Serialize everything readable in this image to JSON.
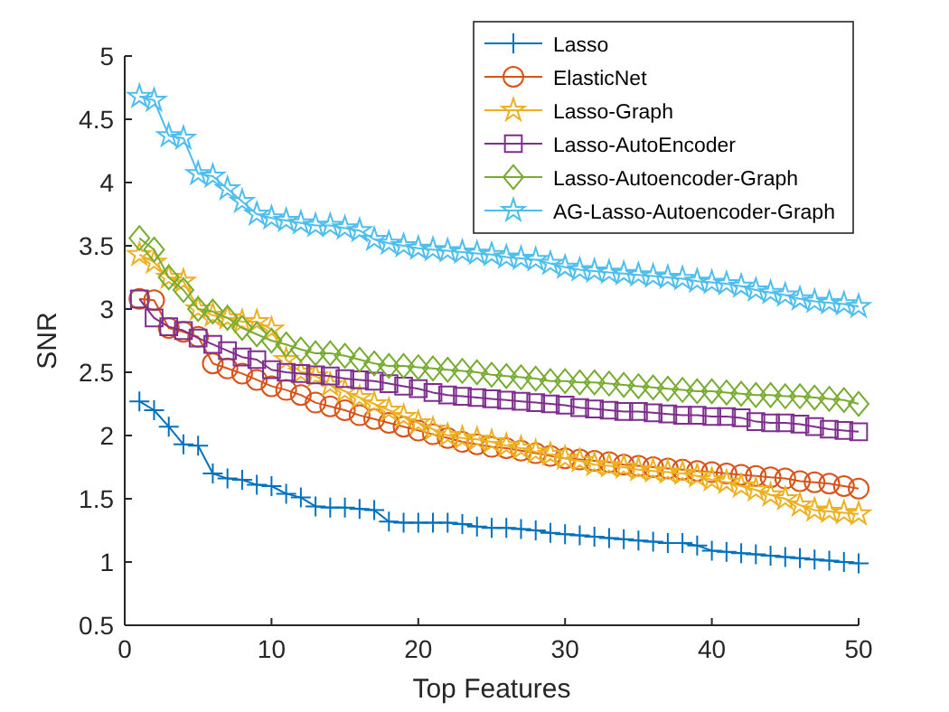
{
  "chart_data": {
    "type": "line",
    "xlabel": "Top Features",
    "ylabel": "SNR",
    "xlim": [
      0,
      50
    ],
    "ylim": [
      0.5,
      5
    ],
    "xticks": [
      0,
      10,
      20,
      30,
      40,
      50
    ],
    "yticks": [
      0.5,
      1,
      1.5,
      2,
      2.5,
      3,
      3.5,
      4,
      4.5,
      5
    ],
    "grid": false,
    "legend": "top right",
    "x": [
      1,
      2,
      3,
      4,
      5,
      6,
      7,
      8,
      9,
      10,
      11,
      12,
      13,
      14,
      15,
      16,
      17,
      18,
      19,
      20,
      21,
      22,
      23,
      24,
      25,
      26,
      27,
      28,
      29,
      30,
      31,
      32,
      33,
      34,
      35,
      36,
      37,
      38,
      39,
      40,
      41,
      42,
      43,
      44,
      45,
      46,
      47,
      48,
      49,
      50
    ],
    "series": [
      {
        "name": "Lasso",
        "color": "#0072bd",
        "marker": "cross",
        "values": [
          2.27,
          2.2,
          2.07,
          1.93,
          1.92,
          1.7,
          1.66,
          1.65,
          1.61,
          1.6,
          1.54,
          1.51,
          1.44,
          1.43,
          1.43,
          1.42,
          1.41,
          1.32,
          1.31,
          1.31,
          1.31,
          1.31,
          1.3,
          1.28,
          1.27,
          1.27,
          1.26,
          1.25,
          1.23,
          1.22,
          1.21,
          1.2,
          1.19,
          1.18,
          1.17,
          1.16,
          1.15,
          1.15,
          1.13,
          1.09,
          1.08,
          1.07,
          1.06,
          1.05,
          1.04,
          1.03,
          1.02,
          1.01,
          1.0,
          0.99
        ]
      },
      {
        "name": "ElasticNet",
        "color": "#d95319",
        "marker": "circle",
        "values": [
          3.08,
          3.07,
          2.85,
          2.82,
          2.78,
          2.57,
          2.53,
          2.49,
          2.44,
          2.39,
          2.36,
          2.32,
          2.26,
          2.23,
          2.2,
          2.16,
          2.13,
          2.1,
          2.07,
          2.04,
          2.01,
          1.98,
          1.95,
          1.93,
          1.91,
          1.9,
          1.88,
          1.86,
          1.84,
          1.82,
          1.81,
          1.8,
          1.79,
          1.77,
          1.76,
          1.75,
          1.74,
          1.73,
          1.72,
          1.71,
          1.7,
          1.69,
          1.68,
          1.67,
          1.66,
          1.64,
          1.63,
          1.62,
          1.6,
          1.58
        ]
      },
      {
        "name": "Lasso-Graph",
        "color": "#edb120",
        "marker": "star",
        "values": [
          3.43,
          3.37,
          3.25,
          3.22,
          3.0,
          2.95,
          2.93,
          2.9,
          2.9,
          2.84,
          2.6,
          2.5,
          2.47,
          2.4,
          2.35,
          2.3,
          2.25,
          2.2,
          2.15,
          2.1,
          2.05,
          2.0,
          1.98,
          1.97,
          1.95,
          1.92,
          1.9,
          1.87,
          1.85,
          1.82,
          1.8,
          1.77,
          1.76,
          1.75,
          1.73,
          1.72,
          1.71,
          1.7,
          1.68,
          1.65,
          1.63,
          1.6,
          1.57,
          1.53,
          1.5,
          1.45,
          1.41,
          1.4,
          1.39,
          1.38
        ]
      },
      {
        "name": "Lasso-AutoEncoder",
        "color": "#7e2f8e",
        "marker": "square",
        "values": [
          3.08,
          2.93,
          2.86,
          2.83,
          2.77,
          2.72,
          2.67,
          2.62,
          2.6,
          2.52,
          2.5,
          2.49,
          2.48,
          2.47,
          2.45,
          2.44,
          2.43,
          2.41,
          2.39,
          2.37,
          2.34,
          2.32,
          2.31,
          2.3,
          2.29,
          2.28,
          2.27,
          2.26,
          2.25,
          2.24,
          2.22,
          2.21,
          2.2,
          2.19,
          2.19,
          2.18,
          2.17,
          2.16,
          2.16,
          2.15,
          2.15,
          2.14,
          2.11,
          2.1,
          2.1,
          2.09,
          2.07,
          2.05,
          2.04,
          2.03
        ]
      },
      {
        "name": "Lasso-Autoencoder-Graph",
        "color": "#77ac30",
        "marker": "diamond",
        "values": [
          3.56,
          3.47,
          3.25,
          3.15,
          3.0,
          2.98,
          2.93,
          2.85,
          2.8,
          2.75,
          2.72,
          2.68,
          2.65,
          2.65,
          2.63,
          2.6,
          2.57,
          2.55,
          2.55,
          2.54,
          2.53,
          2.52,
          2.51,
          2.5,
          2.48,
          2.47,
          2.46,
          2.45,
          2.43,
          2.43,
          2.42,
          2.42,
          2.41,
          2.4,
          2.39,
          2.38,
          2.37,
          2.36,
          2.35,
          2.35,
          2.34,
          2.33,
          2.32,
          2.32,
          2.31,
          2.31,
          2.3,
          2.29,
          2.28,
          2.25
        ]
      },
      {
        "name": "AG-Lasso-Autoencoder-Graph",
        "color": "#4dbeee",
        "marker": "star",
        "values": [
          4.68,
          4.65,
          4.37,
          4.35,
          4.07,
          4.05,
          3.95,
          3.85,
          3.75,
          3.72,
          3.7,
          3.68,
          3.66,
          3.66,
          3.64,
          3.62,
          3.55,
          3.52,
          3.5,
          3.48,
          3.47,
          3.46,
          3.45,
          3.44,
          3.43,
          3.41,
          3.4,
          3.39,
          3.36,
          3.33,
          3.31,
          3.3,
          3.29,
          3.28,
          3.27,
          3.26,
          3.25,
          3.24,
          3.22,
          3.21,
          3.2,
          3.18,
          3.15,
          3.13,
          3.11,
          3.08,
          3.06,
          3.05,
          3.04,
          3.02
        ]
      }
    ]
  }
}
